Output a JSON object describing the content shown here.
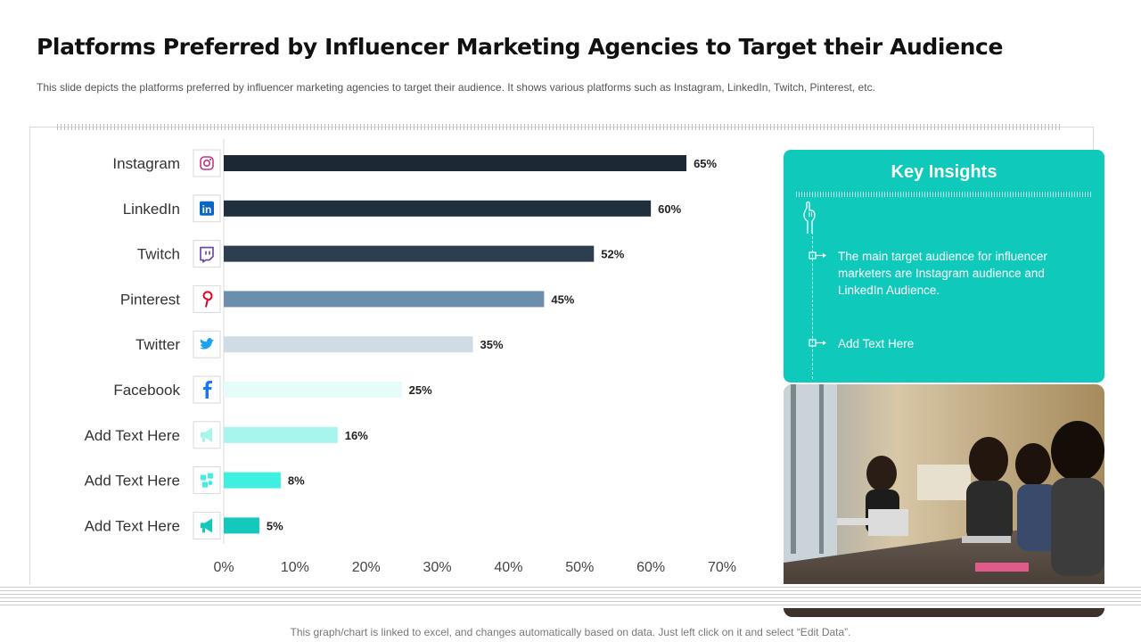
{
  "title": "Platforms Preferred by Influencer Marketing Agencies to Target their Audience",
  "subtitle": "This slide depicts the platforms preferred by influencer marketing agencies to target their audience. It shows various platforms such as Instagram, LinkedIn, Twitch, Pinterest, etc.",
  "chart_data": {
    "type": "bar",
    "orientation": "horizontal",
    "categories": [
      "Instagram",
      "LinkedIn",
      "Twitch",
      "Pinterest",
      "Twitter",
      "Facebook",
      "Add Text Here",
      "Add Text Here",
      "Add Text Here"
    ],
    "values": [
      65,
      60,
      52,
      45,
      35,
      25,
      16,
      8,
      5
    ],
    "value_labels": [
      "65%",
      "60%",
      "52%",
      "45%",
      "35%",
      "25%",
      "16%",
      "8%",
      "5%"
    ],
    "bar_colors": [
      "#1c2833",
      "#1f2f3e",
      "#2c3e50",
      "#6c8ead",
      "#cfdce6",
      "#e6fcfb",
      "#a8f5ee",
      "#3ff0e0",
      "#14c9bc"
    ],
    "icons": [
      "instagram-icon",
      "linkedin-icon",
      "twitch-icon",
      "pinterest-icon",
      "twitter-icon",
      "facebook-icon",
      "megaphone-icon",
      "puzzle-icon",
      "megaphone-icon"
    ],
    "icon_colors": [
      "#c13584",
      "#0a66c2",
      "#6441a5",
      "#e60023",
      "#1da1f2",
      "#1877f2",
      "#a8f5ee",
      "#3ff0e0",
      "#14c9bc"
    ],
    "xlim": [
      0,
      70
    ],
    "xticks": [
      0,
      10,
      20,
      30,
      40,
      50,
      60,
      70
    ],
    "xtick_labels": [
      "0%",
      "10%",
      "20%",
      "30%",
      "40%",
      "50%",
      "60%",
      "70%"
    ],
    "grid": false,
    "legend": "none"
  },
  "insights": {
    "title": "Key Insights",
    "items": [
      "The main target audience for influencer marketers are Instagram audience and LinkedIn Audience.",
      "Add Text Here"
    ],
    "bg_color": "#0fc9bb"
  },
  "footer": "This graph/chart is linked to excel, and changes automatically based on data. Just left click on it and select “Edit Data”."
}
